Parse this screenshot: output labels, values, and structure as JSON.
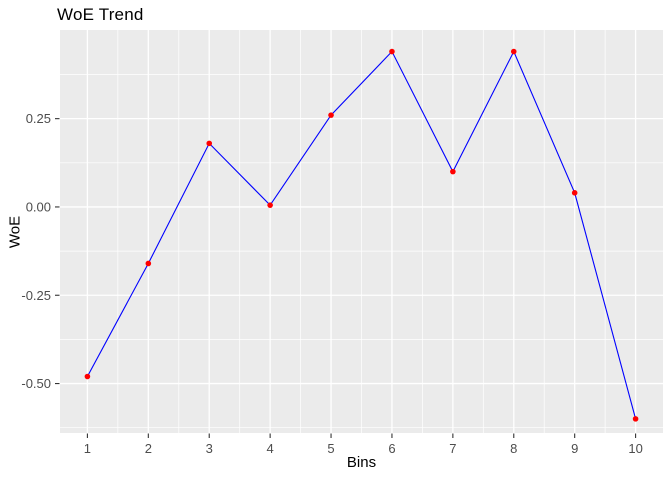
{
  "chart_data": {
    "type": "line",
    "title": "WoE Trend",
    "xlabel": "Bins",
    "ylabel": "WoE",
    "x": [
      1,
      2,
      3,
      4,
      5,
      6,
      7,
      8,
      9,
      10
    ],
    "values": [
      -0.48,
      -0.16,
      0.18,
      0.005,
      0.26,
      0.44,
      0.1,
      0.44,
      0.04,
      -0.6
    ],
    "series_name": "WoE",
    "x_ticks": {
      "values": [
        1,
        2,
        3,
        4,
        5,
        6,
        7,
        8,
        9,
        10
      ],
      "labels": [
        "1",
        "2",
        "3",
        "4",
        "5",
        "6",
        "7",
        "8",
        "9",
        "10"
      ]
    },
    "y_ticks": {
      "values": [
        0.25,
        0.0,
        -0.25,
        -0.5
      ],
      "labels": [
        "0.25",
        "0.00",
        "-0.25",
        "-0.50"
      ]
    },
    "x_minor": [
      1.5,
      2.5,
      3.5,
      4.5,
      5.5,
      6.5,
      7.5,
      8.5,
      9.5
    ],
    "y_minor": [
      0.375,
      0.125,
      -0.125,
      -0.375,
      -0.625
    ],
    "x_domain": [
      0.55,
      10.45
    ],
    "y_domain": [
      -0.64,
      0.501
    ],
    "grid": true,
    "legend": "none",
    "colors": {
      "panel_bg": "#EBEBEB",
      "grid": "#FFFFFF",
      "line": "#0000FF",
      "point": "#FF0000",
      "axis_text": "#4D4D4D",
      "tick_mark": "#333333",
      "title_text": "#000000"
    }
  }
}
